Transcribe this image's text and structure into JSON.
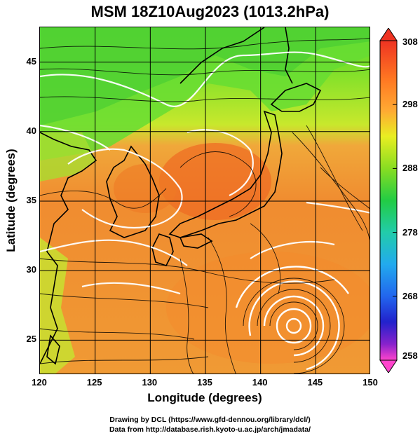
{
  "title": "MSM 18Z10Aug2023 (1013.2hPa)",
  "xlabel": "Longitude (degrees)",
  "ylabel": "Latitude  (degrees)",
  "credits": [
    "Drawing by DCL (https://www.gfd-dennou.org/library/dcl/)",
    "Data from http://database.rish.kyoto-u.ac.jp/arch/jmadata/"
  ],
  "chart_data": {
    "type": "heatmap",
    "x_ticks": [
      "120",
      "125",
      "130",
      "135",
      "140",
      "145",
      "150"
    ],
    "y_ticks": [
      "45",
      "40",
      "35",
      "30",
      "25"
    ],
    "xlim": [
      120,
      150
    ],
    "ylim": [
      22.5,
      47.5
    ],
    "colorbar": {
      "ticks": [
        "308",
        "298",
        "288",
        "278",
        "268",
        "258"
      ],
      "range": [
        258,
        308
      ],
      "colors": [
        "#ff44cc",
        "#2222ee",
        "#22aaee",
        "#22cc44",
        "#ccee22",
        "#ff9922",
        "#ee3322"
      ]
    },
    "features": {
      "typhoon_center": [
        142.5,
        26.5
      ],
      "grid_color": "#000000",
      "coast_color": "#000000",
      "contour_color": "#ffffff"
    }
  }
}
